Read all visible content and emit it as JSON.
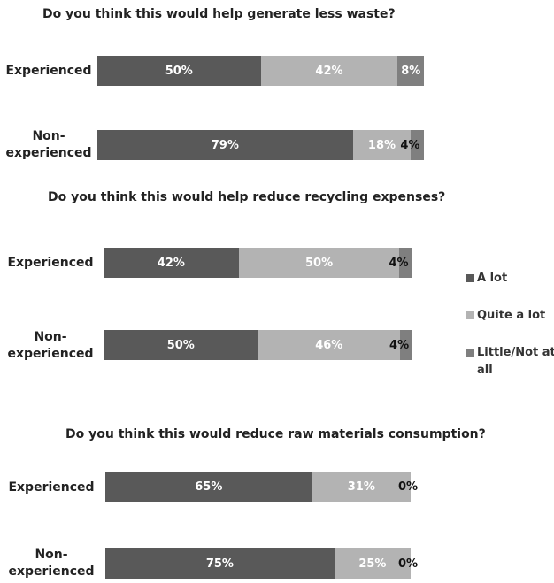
{
  "legend": {
    "items": [
      "A lot",
      "Quite a lot",
      "Little/Not at all"
    ]
  },
  "colors": {
    "a_lot": "#595959",
    "quite_a_lot": "#b3b3b3",
    "little": "#7f7f7f"
  },
  "chart_data": [
    {
      "type": "bar",
      "orientation": "horizontal",
      "stacked": true,
      "title": "Do you think  this would help generate less waste?",
      "categories": [
        "Experienced",
        "Non-experienced"
      ],
      "series": [
        {
          "name": "A lot",
          "values": [
            50,
            79
          ],
          "labels": [
            "50%",
            "79%"
          ]
        },
        {
          "name": "Quite a lot",
          "values": [
            42,
            18
          ],
          "labels": [
            "42%",
            "18%"
          ]
        },
        {
          "name": "Little/Not at all",
          "values": [
            8,
            4
          ],
          "labels": [
            "8%",
            "4%"
          ]
        }
      ]
    },
    {
      "type": "bar",
      "orientation": "horizontal",
      "stacked": true,
      "title": "Do you think  this would help reduce recycling expenses?",
      "categories": [
        "Experienced",
        "Non-experienced"
      ],
      "series": [
        {
          "name": "A lot",
          "values": [
            42,
            50
          ],
          "labels": [
            "42%",
            "50%"
          ]
        },
        {
          "name": "Quite a lot",
          "values": [
            50,
            46
          ],
          "labels": [
            "50%",
            "46%"
          ]
        },
        {
          "name": "Little/Not at all",
          "values": [
            4,
            4
          ],
          "labels": [
            "4%",
            "4%"
          ]
        }
      ]
    },
    {
      "type": "bar",
      "orientation": "horizontal",
      "stacked": true,
      "title": "Do you think  this would reduce raw materials consumption?",
      "categories": [
        "Experienced",
        "Non-experienced"
      ],
      "series": [
        {
          "name": "A lot",
          "values": [
            65,
            75
          ],
          "labels": [
            "65%",
            "75%"
          ]
        },
        {
          "name": "Quite a lot",
          "values": [
            31,
            25
          ],
          "labels": [
            "31%",
            "25%"
          ]
        },
        {
          "name": "Little/Not at all",
          "values": [
            0,
            0
          ],
          "labels": [
            "0%",
            "0%"
          ]
        }
      ]
    }
  ]
}
